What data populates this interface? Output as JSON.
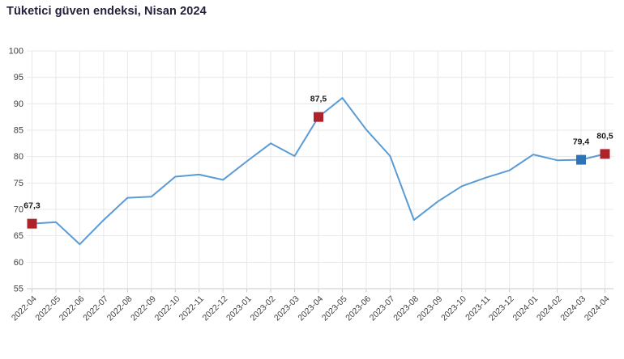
{
  "chart_data": {
    "type": "line",
    "title": "Tüketici güven endeksi, Nisan 2024",
    "categories": [
      "2022-04",
      "2022-05",
      "2022-06",
      "2022-07",
      "2022-08",
      "2022-09",
      "2022-10",
      "2022-11",
      "2022-12",
      "2023-01",
      "2023-02",
      "2023-03",
      "2023-04",
      "2023-05",
      "2023-06",
      "2023-07",
      "2023-08",
      "2023-09",
      "2023-10",
      "2023-11",
      "2023-12",
      "2024-01",
      "2024-02",
      "2024-03",
      "2024-04"
    ],
    "series": [
      {
        "name": "Tüketici güven endeksi",
        "values": [
          67.3,
          67.6,
          63.4,
          68.0,
          72.2,
          72.4,
          76.2,
          76.6,
          75.6,
          79.1,
          82.5,
          80.1,
          87.5,
          91.1,
          85.1,
          80.1,
          68.0,
          71.5,
          74.4,
          76.0,
          77.4,
          80.4,
          79.3,
          79.4,
          80.5
        ]
      }
    ],
    "ylim": [
      55,
      100
    ],
    "ytick_step": 5,
    "yticks": [
      "55",
      "60",
      "65",
      "70",
      "75",
      "80",
      "85",
      "90",
      "95",
      "100"
    ],
    "grid": true,
    "legend": "none",
    "xlabel": "",
    "ylabel": "",
    "annotations": [
      {
        "category": "2022-04",
        "value": 67.3,
        "label": "67,3",
        "marker": "square",
        "color_key": "annotation_red"
      },
      {
        "category": "2023-04",
        "value": 87.5,
        "label": "87,5",
        "marker": "square",
        "color_key": "annotation_red"
      },
      {
        "category": "2024-03",
        "value": 79.4,
        "label": "79,4",
        "marker": "square",
        "color_key": "annotation_blue"
      },
      {
        "category": "2024-04",
        "value": 80.5,
        "label": "80,5",
        "marker": "square",
        "color_key": "annotation_red"
      }
    ],
    "colors": {
      "line": "#5b9bd5",
      "annotation_red": "#b0222a",
      "annotation_blue": "#2e74b5",
      "title": "#21213b",
      "axis_label": "#404040",
      "grid": "#e8e8e8",
      "axis_line": "#c9c9c9",
      "data_label": "#1a1a1a",
      "background": "#ffffff"
    }
  }
}
